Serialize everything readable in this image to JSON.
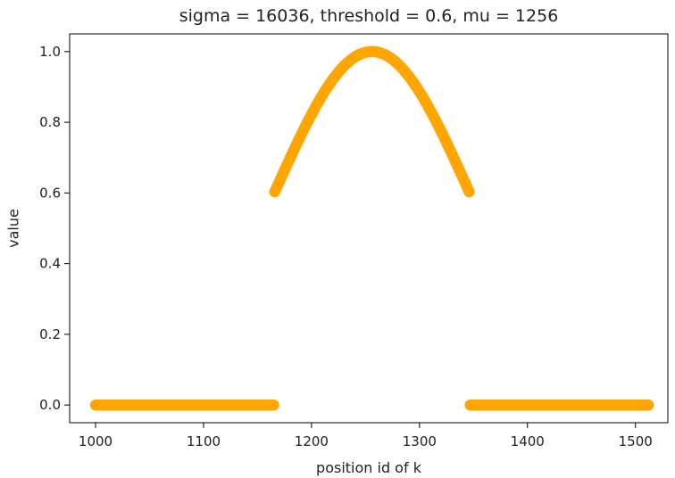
{
  "chart_data": {
    "type": "scatter",
    "title": "sigma = 16036, threshold = 0.6, mu = 1256",
    "xlabel": "position id of k",
    "ylabel": "value",
    "xlim": [
      976,
      1530
    ],
    "ylim": [
      -0.05,
      1.05
    ],
    "xticks": [
      1000,
      1100,
      1200,
      1300,
      1400,
      1500
    ],
    "yticks": [
      0.0,
      0.2,
      0.4,
      0.6,
      0.8,
      1.0
    ],
    "xtick_labels": [
      "1000",
      "1100",
      "1200",
      "1300",
      "1400",
      "1500"
    ],
    "ytick_labels": [
      "0.0",
      "0.2",
      "0.4",
      "0.6",
      "0.8",
      "1.0"
    ],
    "grid": false,
    "series": [
      {
        "color": "#FFA500",
        "x_range": [
          1000,
          1512
        ],
        "mu": 1256,
        "sigma": 16036,
        "threshold": 0.6,
        "rule": "value = exp(-(x - mu)^2 / sigma), set to 0 where below threshold"
      }
    ]
  }
}
